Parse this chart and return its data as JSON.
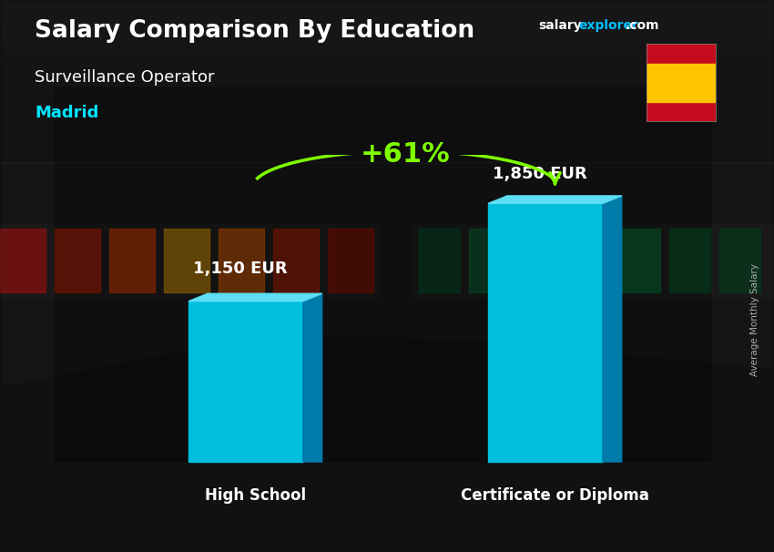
{
  "title": "Salary Comparison By Education",
  "subtitle": "Surveillance Operator",
  "location": "Madrid",
  "categories": [
    "High School",
    "Certificate or Diploma"
  ],
  "values": [
    1150,
    1850
  ],
  "value_labels": [
    "1,150 EUR",
    "1,850 EUR"
  ],
  "pct_change": "+61%",
  "bar_face_color": "#00BEDD",
  "bar_top_color": "#5DDEF4",
  "bar_side_color": "#007BAA",
  "ylim_max": 2200,
  "title_color": "#FFFFFF",
  "subtitle_color": "#FFFFFF",
  "location_color": "#00E5FF",
  "value_label_color": "#FFFFFF",
  "category_label_color": "#FFFFFF",
  "pct_color": "#7FFF00",
  "arrow_color": "#7FFF00",
  "site_salary_color": "#FFFFFF",
  "site_explorer_color": "#00BFFF",
  "right_label": "Average Monthly Salary",
  "fig_width": 8.5,
  "fig_height": 6.06,
  "dpi": 100
}
